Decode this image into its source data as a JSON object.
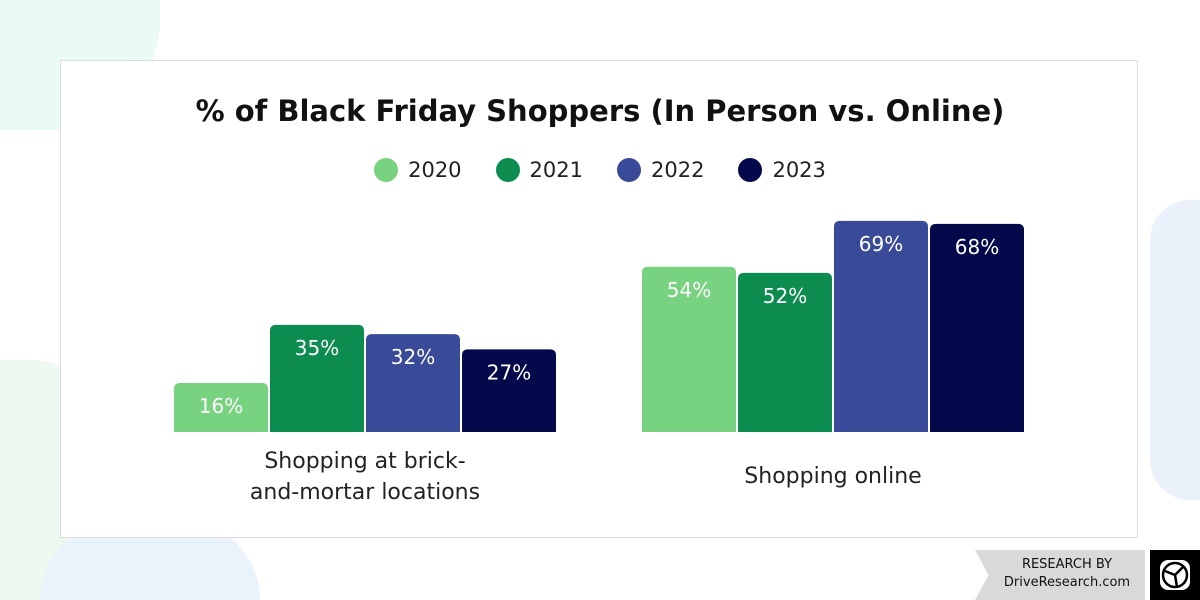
{
  "chart_data": {
    "type": "bar",
    "title": "% of Black Friday Shoppers (In Person vs. Online)",
    "categories": [
      "Shopping at brick-and-mortar locations",
      "Shopping online"
    ],
    "category_lines": [
      [
        "Shopping at brick-",
        "and-mortar locations"
      ],
      [
        "Shopping online"
      ]
    ],
    "series": [
      {
        "name": "2020",
        "color": "#78d381",
        "values": [
          16,
          54
        ]
      },
      {
        "name": "2021",
        "color": "#0d8c4f",
        "values": [
          35,
          52
        ]
      },
      {
        "name": "2022",
        "color": "#394a99",
        "values": [
          32,
          69
        ]
      },
      {
        "name": "2023",
        "color": "#03094b",
        "values": [
          27,
          68
        ]
      }
    ],
    "value_suffix": "%",
    "legend_position": "top",
    "grid": false,
    "ylim": [
      0,
      100
    ]
  },
  "branding": {
    "line1": "RESEARCH BY",
    "line2": "DriveResearch.com",
    "logo_icon": "steering-wheel-icon"
  }
}
